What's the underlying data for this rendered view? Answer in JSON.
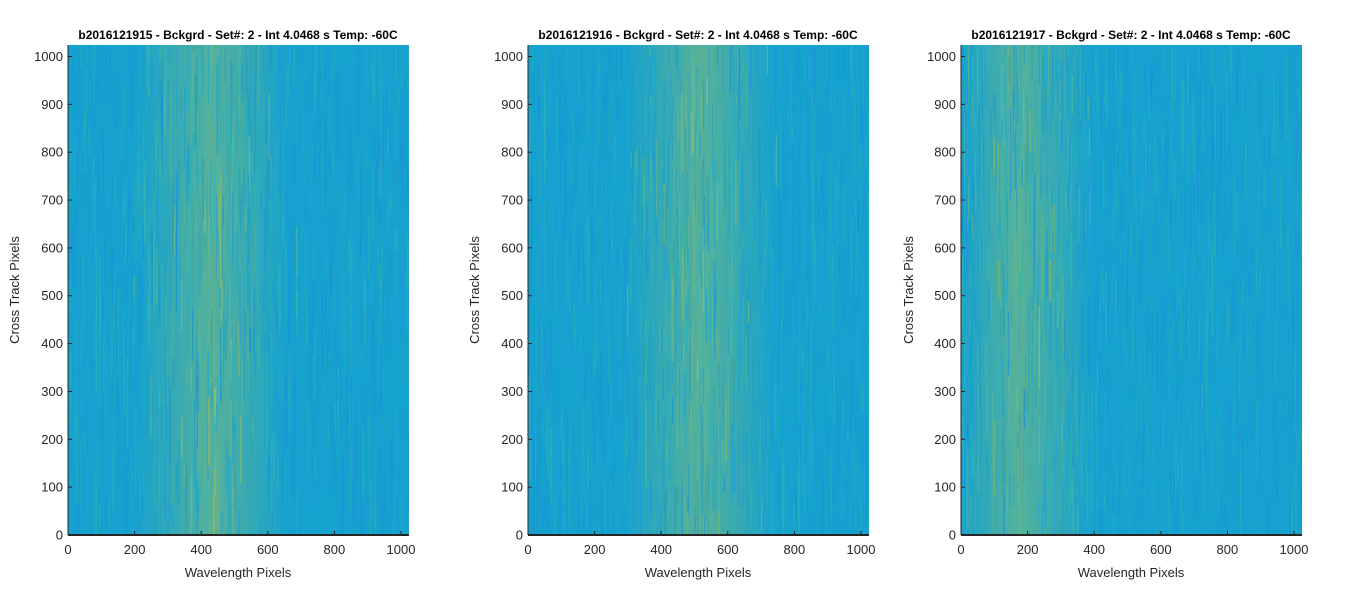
{
  "figure": {
    "colormap": [
      "#1a93d6",
      "#16a2cf",
      "#2bb1b9",
      "#55b996",
      "#8fbd6b",
      "#c4c04c"
    ]
  },
  "chart_data": [
    {
      "type": "heatmap",
      "title": "b2016121915 - Bckgrd - Set#: 2 - Int 4.0468 s Temp: -60C",
      "xlabel": "Wavelength Pixels",
      "ylabel": "Cross Track Pixels",
      "xlim": [
        0,
        1024
      ],
      "ylim": [
        0,
        1024
      ],
      "xticks": [
        0,
        200,
        400,
        600,
        800,
        1000
      ],
      "yticks": [
        0,
        100,
        200,
        300,
        400,
        500,
        600,
        700,
        800,
        900,
        1000
      ],
      "grid": false,
      "warm_band_center_x": 430
    },
    {
      "type": "heatmap",
      "title": "b2016121916 - Bckgrd - Set#: 2 - Int 4.0468 s Temp: -60C",
      "xlabel": "Wavelength Pixels",
      "ylabel": "Cross Track Pixels",
      "xlim": [
        0,
        1024
      ],
      "ylim": [
        0,
        1024
      ],
      "xticks": [
        0,
        200,
        400,
        600,
        800,
        1000
      ],
      "yticks": [
        0,
        100,
        200,
        300,
        400,
        500,
        600,
        700,
        800,
        900,
        1000
      ],
      "grid": false,
      "warm_band_center_x": 520
    },
    {
      "type": "heatmap",
      "title": "b2016121917 - Bckgrd - Set#: 2 - Int 4.0468 s Temp: -60C",
      "xlabel": "Wavelength Pixels",
      "ylabel": "Cross Track Pixels",
      "xlim": [
        0,
        1024
      ],
      "ylim": [
        0,
        1024
      ],
      "xticks": [
        0,
        200,
        400,
        600,
        800,
        1000
      ],
      "yticks": [
        0,
        100,
        200,
        300,
        400,
        500,
        600,
        700,
        800,
        900,
        1000
      ],
      "grid": false,
      "warm_band_center_x": 170
    }
  ]
}
